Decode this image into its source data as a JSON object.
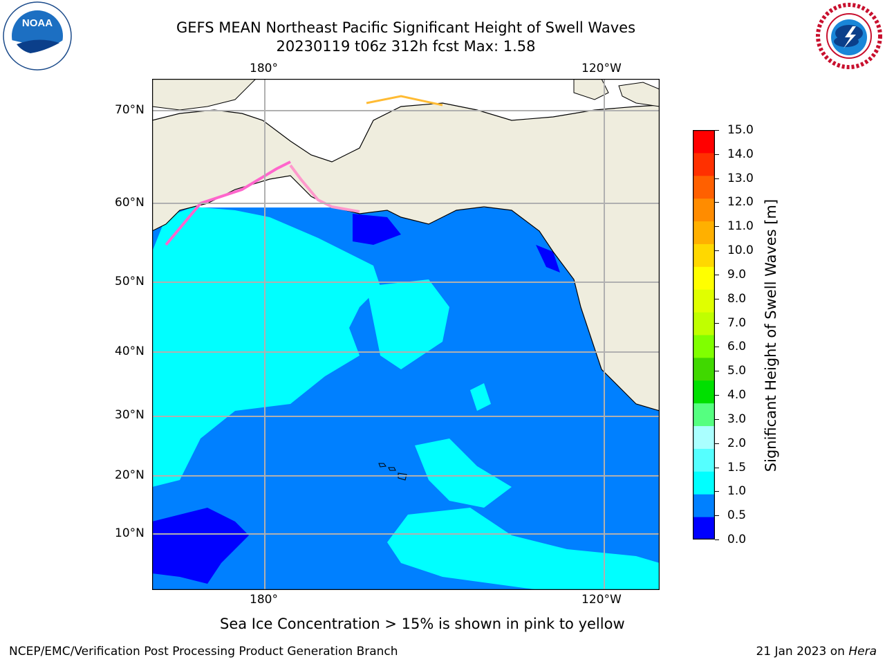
{
  "title_line1": "GEFS MEAN Northeast Pacific Significant Height of Swell Waves",
  "title_line2": "20230119 t06z 312h fcst   Max: 1.58",
  "logos": {
    "left": "NOAA",
    "right": "NATIONAL WEATHER SERVICE"
  },
  "map": {
    "lon_labels_top": [
      "180°",
      "120°W"
    ],
    "lon_labels_bottom": [
      "180°",
      "120°W"
    ],
    "lat_labels": [
      "70°N",
      "60°N",
      "50°N",
      "40°N",
      "30°N",
      "20°N",
      "10°N"
    ],
    "colors": {
      "land": "#efedde",
      "ocean_low": "#0000ff",
      "ocean_mid": "#0080ff",
      "ocean_high": "#00ffff",
      "ice": "#ffffff"
    }
  },
  "colorbar": {
    "label": "Significant Height of Swell Waves [m]",
    "ticks": [
      "15.0",
      "14.0",
      "13.0",
      "12.0",
      "11.0",
      "10.0",
      "9.0",
      "8.0",
      "7.0",
      "6.0",
      "5.0",
      "4.0",
      "3.0",
      "2.0",
      "1.5",
      "1.0",
      "0.5",
      "0.0"
    ],
    "colors": [
      "#0000ff",
      "#0080ff",
      "#00ffff",
      "#55ffff",
      "#aaffff",
      "#55ff80",
      "#00e000",
      "#40d800",
      "#80ff00",
      "#c0ff00",
      "#e0ff00",
      "#ffff00",
      "#ffd800",
      "#ffb000",
      "#ff8c00",
      "#ff6000",
      "#ff3000",
      "#ff0000"
    ]
  },
  "footnote": "Sea Ice Concentration > 15% is shown in pink to yellow",
  "credit_left": "NCEP/EMC/Verification Post Processing Product Generation Branch",
  "credit_right_prefix": "21 Jan 2023 on ",
  "credit_right_italic": "Hera"
}
